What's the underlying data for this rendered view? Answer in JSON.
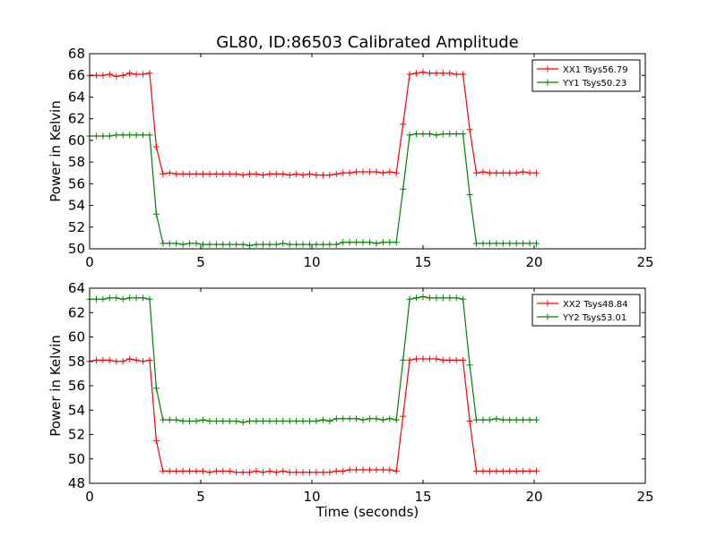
{
  "figure": {
    "title": "GL80, ID:86503 Calibrated Amplitude",
    "xlabel": "Time (seconds)"
  },
  "chart_data": [
    {
      "type": "line",
      "title": "GL80, ID:86503 Calibrated Amplitude",
      "xlabel": "",
      "ylabel": "Power in Kelvin",
      "xlim": [
        0,
        25
      ],
      "ylim": [
        50,
        68
      ],
      "xticks": [
        0,
        5,
        10,
        15,
        20,
        25
      ],
      "yticks": [
        50,
        52,
        54,
        56,
        58,
        60,
        62,
        64,
        66,
        68
      ],
      "grid": false,
      "legend_position": "top-right",
      "x": [
        0.0,
        0.3,
        0.6,
        0.9,
        1.2,
        1.5,
        1.8,
        2.1,
        2.4,
        2.7,
        3.0,
        3.3,
        3.6,
        3.9,
        4.2,
        4.5,
        4.8,
        5.1,
        5.4,
        5.7,
        6.0,
        6.3,
        6.6,
        6.9,
        7.2,
        7.5,
        7.8,
        8.1,
        8.4,
        8.7,
        9.0,
        9.3,
        9.6,
        9.9,
        10.2,
        10.5,
        10.8,
        11.1,
        11.4,
        11.7,
        12.0,
        12.3,
        12.6,
        12.9,
        13.2,
        13.5,
        13.8,
        14.1,
        14.4,
        14.7,
        15.0,
        15.3,
        15.6,
        15.9,
        16.2,
        16.5,
        16.8,
        17.1,
        17.4,
        17.7,
        18.0,
        18.3,
        18.6,
        18.9,
        19.2,
        19.5,
        19.8,
        20.1
      ],
      "series": [
        {
          "name": "XX1 Tsys56.79",
          "color": "#ff0000",
          "values": [
            66.0,
            66.0,
            66.0,
            66.1,
            65.9,
            66.0,
            66.2,
            66.1,
            66.1,
            66.2,
            59.4,
            56.9,
            57.0,
            56.9,
            56.9,
            56.9,
            56.9,
            56.9,
            56.9,
            56.9,
            56.9,
            56.9,
            56.9,
            56.8,
            56.9,
            56.9,
            56.8,
            56.9,
            56.9,
            56.9,
            56.8,
            56.9,
            56.8,
            56.9,
            56.8,
            56.8,
            56.8,
            56.9,
            57.0,
            57.0,
            57.1,
            57.1,
            57.1,
            57.1,
            57.0,
            57.1,
            57.0,
            61.5,
            66.1,
            66.2,
            66.3,
            66.2,
            66.2,
            66.2,
            66.2,
            66.1,
            66.1,
            61.0,
            57.0,
            57.1,
            57.0,
            57.0,
            57.0,
            57.0,
            57.0,
            57.1,
            57.0,
            57.0
          ]
        },
        {
          "name": "YY1 Tsys50.23",
          "color": "#008000",
          "values": [
            60.4,
            60.4,
            60.4,
            60.4,
            60.5,
            60.5,
            60.5,
            60.5,
            60.5,
            60.5,
            53.2,
            50.5,
            50.5,
            50.5,
            50.4,
            50.5,
            50.5,
            50.4,
            50.4,
            50.4,
            50.4,
            50.4,
            50.4,
            50.4,
            50.3,
            50.4,
            50.4,
            50.4,
            50.4,
            50.5,
            50.4,
            50.4,
            50.4,
            50.4,
            50.4,
            50.4,
            50.4,
            50.4,
            50.6,
            50.6,
            50.6,
            50.6,
            50.6,
            50.5,
            50.6,
            50.6,
            50.6,
            55.5,
            60.5,
            60.6,
            60.6,
            60.6,
            60.5,
            60.6,
            60.6,
            60.6,
            60.6,
            55.0,
            50.5,
            50.5,
            50.5,
            50.5,
            50.5,
            50.5,
            50.5,
            50.5,
            50.5,
            50.5
          ]
        }
      ]
    },
    {
      "type": "line",
      "title": "",
      "xlabel": "Time (seconds)",
      "ylabel": "Power in Kelvin",
      "xlim": [
        0,
        25
      ],
      "ylim": [
        48,
        64
      ],
      "xticks": [
        0,
        5,
        10,
        15,
        20,
        25
      ],
      "yticks": [
        48,
        50,
        52,
        54,
        56,
        58,
        60,
        62,
        64
      ],
      "grid": false,
      "legend_position": "top-right",
      "x": [
        0.0,
        0.3,
        0.6,
        0.9,
        1.2,
        1.5,
        1.8,
        2.1,
        2.4,
        2.7,
        3.0,
        3.3,
        3.6,
        3.9,
        4.2,
        4.5,
        4.8,
        5.1,
        5.4,
        5.7,
        6.0,
        6.3,
        6.6,
        6.9,
        7.2,
        7.5,
        7.8,
        8.1,
        8.4,
        8.7,
        9.0,
        9.3,
        9.6,
        9.9,
        10.2,
        10.5,
        10.8,
        11.1,
        11.4,
        11.7,
        12.0,
        12.3,
        12.6,
        12.9,
        13.2,
        13.5,
        13.8,
        14.1,
        14.4,
        14.7,
        15.0,
        15.3,
        15.6,
        15.9,
        16.2,
        16.5,
        16.8,
        17.1,
        17.4,
        17.7,
        18.0,
        18.3,
        18.6,
        18.9,
        19.2,
        19.5,
        19.8,
        20.1
      ],
      "series": [
        {
          "name": "XX2 Tsys48.84",
          "color": "#ff0000",
          "values": [
            58.0,
            58.1,
            58.1,
            58.1,
            58.0,
            58.0,
            58.2,
            58.1,
            58.0,
            58.1,
            51.5,
            49.0,
            49.0,
            49.0,
            49.0,
            49.0,
            49.0,
            49.0,
            48.9,
            49.0,
            49.0,
            49.0,
            48.9,
            48.9,
            48.9,
            49.0,
            48.9,
            49.0,
            48.9,
            49.0,
            48.9,
            48.9,
            48.9,
            48.9,
            48.9,
            48.9,
            48.9,
            49.0,
            49.0,
            49.1,
            49.1,
            49.1,
            49.1,
            49.1,
            49.1,
            49.1,
            49.0,
            53.5,
            58.1,
            58.2,
            58.2,
            58.2,
            58.2,
            58.1,
            58.1,
            58.1,
            58.1,
            53.1,
            49.0,
            49.0,
            49.0,
            49.0,
            49.0,
            49.0,
            49.0,
            49.0,
            49.0,
            49.0
          ]
        },
        {
          "name": "YY2 Tsys53.01",
          "color": "#008000",
          "values": [
            63.1,
            63.1,
            63.1,
            63.2,
            63.2,
            63.1,
            63.2,
            63.2,
            63.2,
            63.1,
            55.8,
            53.2,
            53.2,
            53.2,
            53.1,
            53.1,
            53.1,
            53.2,
            53.1,
            53.1,
            53.1,
            53.1,
            53.1,
            53.0,
            53.1,
            53.1,
            53.1,
            53.1,
            53.1,
            53.1,
            53.1,
            53.1,
            53.1,
            53.1,
            53.1,
            53.2,
            53.1,
            53.3,
            53.3,
            53.3,
            53.3,
            53.2,
            53.3,
            53.3,
            53.2,
            53.3,
            53.2,
            58.1,
            63.1,
            63.2,
            63.3,
            63.2,
            63.2,
            63.2,
            63.2,
            63.2,
            63.1,
            57.7,
            53.2,
            53.2,
            53.2,
            53.3,
            53.2,
            53.2,
            53.2,
            53.2,
            53.2,
            53.2
          ]
        }
      ]
    }
  ]
}
